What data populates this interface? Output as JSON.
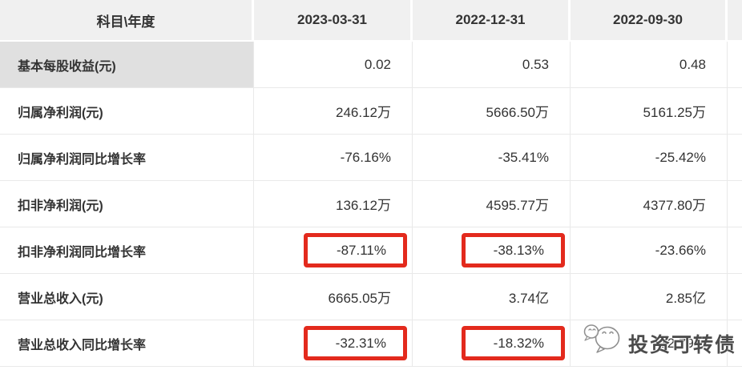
{
  "table": {
    "header": {
      "label": "科目\\年度",
      "columns": [
        "2023-03-31",
        "2022-12-31",
        "2022-09-30"
      ]
    },
    "rows": [
      {
        "label": "基本每股收益(元)",
        "values": [
          "0.02",
          "0.53",
          "0.48"
        ],
        "highlighted": [],
        "label_shaded": true
      },
      {
        "label": "归属净利润(元)",
        "values": [
          "246.12万",
          "5666.50万",
          "5161.25万"
        ],
        "highlighted": [],
        "label_shaded": false
      },
      {
        "label": "归属净利润同比增长率",
        "values": [
          "-76.16%",
          "-35.41%",
          "-25.42%"
        ],
        "highlighted": [],
        "label_shaded": false
      },
      {
        "label": "扣非净利润(元)",
        "values": [
          "136.12万",
          "4595.77万",
          "4377.80万"
        ],
        "highlighted": [],
        "label_shaded": false
      },
      {
        "label": "扣非净利润同比增长率",
        "values": [
          "-87.11%",
          "-38.13%",
          "-23.66%"
        ],
        "highlighted": [
          0,
          1
        ],
        "label_shaded": false
      },
      {
        "label": "营业总收入(元)",
        "values": [
          "6665.05万",
          "3.74亿",
          "2.85亿"
        ],
        "highlighted": [],
        "label_shaded": false
      },
      {
        "label": "营业总收入同比增长率",
        "values": [
          "-32.31%",
          "-18.32%",
          "-12.79%"
        ],
        "highlighted": [
          0,
          1
        ],
        "label_shaded": false
      }
    ]
  },
  "watermark": {
    "icon": "chat-bubbles-icon",
    "text": "投资可转债"
  },
  "colors": {
    "highlight_box": "#e32a1d",
    "header_bg": "#f0f0f0",
    "shaded_label_bg": "#e0e0e0",
    "grid_line": "#e9e9e9",
    "text": "#333333"
  }
}
